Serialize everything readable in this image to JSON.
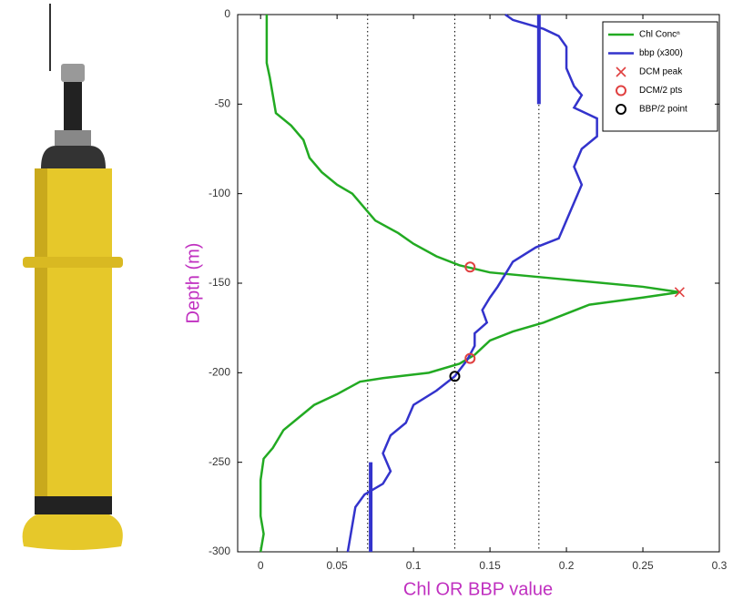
{
  "chart_data": {
    "type": "line",
    "xlabel": "Chl OR BBP value",
    "ylabel": "Depth (m)",
    "xlim": [
      -0.015,
      0.3
    ],
    "ylim": [
      -300,
      0
    ],
    "xticks": [
      0,
      0.05,
      0.1,
      0.15,
      0.2,
      0.25,
      0.3
    ],
    "yticks": [
      0,
      -50,
      -100,
      -150,
      -200,
      -250,
      -300
    ],
    "vlines": [
      0.07,
      0.127,
      0.182
    ],
    "segments": [
      {
        "color": "#3333cc",
        "x": 0.072,
        "y": [
          -250,
          -300
        ]
      },
      {
        "color": "#3333cc",
        "x": 0.182,
        "y": [
          0,
          -50
        ]
      }
    ],
    "series": [
      {
        "name": "Chl Concⁿ",
        "color": "#22aa22",
        "style": "line",
        "values": [
          0.004,
          0.004,
          0.006,
          0.008,
          0.01,
          0.02,
          0.028,
          0.032,
          0.04,
          0.05,
          0.06,
          0.068,
          0.075,
          0.09,
          0.1,
          0.115,
          0.13,
          0.15,
          0.2,
          0.25,
          0.274,
          0.25,
          0.215,
          0.2,
          0.185,
          0.165,
          0.15,
          0.14,
          0.13,
          0.11,
          0.08,
          0.065,
          0.05,
          0.035,
          0.025,
          0.015,
          0.008,
          0.002,
          0,
          0,
          0.002,
          0
        ],
        "depth": [
          0,
          -27,
          -35,
          -45,
          -55,
          -62,
          -70,
          -80,
          -88,
          -95,
          -100,
          -108,
          -115,
          -122,
          -128,
          -135,
          -140,
          -144,
          -148,
          -152,
          -155,
          -158,
          -162,
          -167,
          -172,
          -177,
          -182,
          -190,
          -195,
          -200,
          -203,
          -205,
          -212,
          -218,
          -225,
          -232,
          -242,
          -248,
          -260,
          -280,
          -290,
          -300
        ]
      },
      {
        "name": "bbp (x300)",
        "color": "#3333cc",
        "style": "line",
        "values": [
          0.16,
          0.165,
          0.185,
          0.195,
          0.2,
          0.2,
          0.205,
          0.21,
          0.205,
          0.22,
          0.22,
          0.21,
          0.205,
          0.21,
          0.205,
          0.2,
          0.195,
          0.18,
          0.165,
          0.16,
          0.155,
          0.15,
          0.145,
          0.148,
          0.14,
          0.14,
          0.135,
          0.127,
          0.115,
          0.1,
          0.095,
          0.085,
          0.08,
          0.085,
          0.08,
          0.068,
          0.062,
          0.06,
          0.058,
          0.057
        ],
        "depth": [
          0,
          -3,
          -8,
          -12,
          -18,
          -30,
          -40,
          -45,
          -52,
          -58,
          -68,
          -75,
          -85,
          -95,
          -105,
          -115,
          -125,
          -130,
          -138,
          -145,
          -152,
          -158,
          -165,
          -172,
          -178,
          -185,
          -193,
          -202,
          -210,
          -218,
          -228,
          -235,
          -245,
          -255,
          -262,
          -268,
          -275,
          -285,
          -295,
          -300
        ]
      },
      {
        "name": "DCM peak",
        "color": "#e04040",
        "style": "x",
        "values": [
          0.274
        ],
        "depth": [
          -155
        ]
      },
      {
        "name": "DCM/2 pts",
        "color": "#e04040",
        "style": "o",
        "values": [
          0.137,
          0.137
        ],
        "depth": [
          -141,
          -192
        ]
      },
      {
        "name": "BBP/2 point",
        "color": "#000000",
        "style": "o",
        "values": [
          0.127
        ],
        "depth": [
          -202
        ]
      }
    ]
  }
}
